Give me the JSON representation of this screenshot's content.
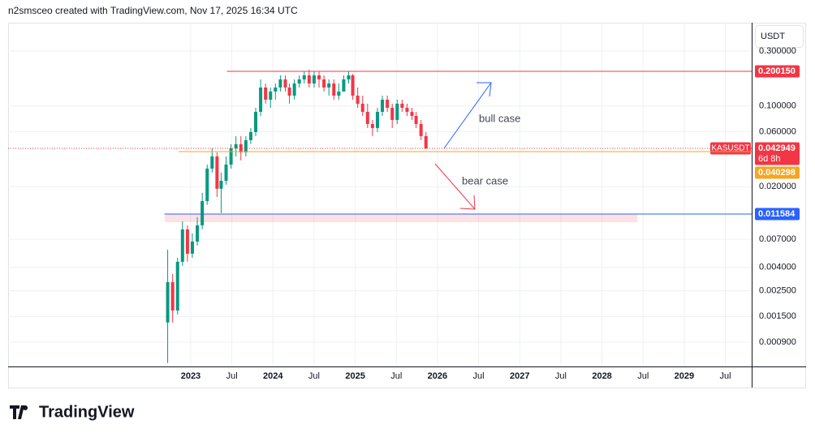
{
  "header": "n2smsceo created with TradingView.com, Nov 17, 2025 16:34 UTC",
  "brand": "TradingView",
  "chart_data": {
    "type": "candlestick",
    "symbol": "KASUSDT",
    "unit": "USDT",
    "log_scale": true,
    "grid": true,
    "up_color": "#089981",
    "down_color": "#f23645",
    "xlim": [
      2020.78,
      2029.82
    ],
    "ylim": [
      0.000553,
      0.528
    ],
    "xticks": [
      {
        "value": 2023,
        "label": "2023"
      },
      {
        "value": 2023.5,
        "label": "Jul"
      },
      {
        "value": 2024,
        "label": "2024"
      },
      {
        "value": 2024.5,
        "label": "Jul"
      },
      {
        "value": 2025,
        "label": "2025"
      },
      {
        "value": 2025.5,
        "label": "Jul"
      },
      {
        "value": 2026,
        "label": "2026"
      },
      {
        "value": 2026.5,
        "label": "Jul"
      },
      {
        "value": 2027,
        "label": "2027"
      },
      {
        "value": 2027.5,
        "label": "Jul"
      },
      {
        "value": 2028,
        "label": "2028"
      },
      {
        "value": 2028.5,
        "label": "Jul"
      },
      {
        "value": 2029,
        "label": "2029"
      },
      {
        "value": 2029.5,
        "label": "Jul"
      }
    ],
    "yticks": [
      {
        "value": 0.3,
        "label": "0.300000"
      },
      {
        "value": 0.1,
        "label": "0.100000"
      },
      {
        "value": 0.06,
        "label": "0.060000"
      },
      {
        "value": 0.02,
        "label": "0.020000"
      },
      {
        "value": 0.007,
        "label": "0.007000"
      },
      {
        "value": 0.004,
        "label": "0.004000"
      },
      {
        "value": 0.0025,
        "label": "0.002500"
      },
      {
        "value": 0.0015,
        "label": "0.001500"
      },
      {
        "value": 0.0009,
        "label": "0.000900"
      }
    ],
    "x": [
      2022.72,
      2022.78,
      2022.84,
      2022.9,
      2022.96,
      2023.02,
      2023.08,
      2023.14,
      2023.2,
      2023.26,
      2023.32,
      2023.37,
      2023.43,
      2023.49,
      2023.55,
      2023.61,
      2023.67,
      2023.73,
      2023.79,
      2023.85,
      2023.91,
      2023.97,
      2024.03,
      2024.09,
      2024.15,
      2024.2,
      2024.26,
      2024.32,
      2024.38,
      2024.44,
      2024.5,
      2024.56,
      2024.62,
      2024.68,
      2024.74,
      2024.8,
      2024.86,
      2024.92,
      2024.97,
      2025.03,
      2025.09,
      2025.15,
      2025.21,
      2025.27,
      2025.33,
      2025.39,
      2025.45,
      2025.51,
      2025.57,
      2025.63,
      2025.69,
      2025.74,
      2025.8,
      2025.86
    ],
    "open": [
      0.00133,
      0.00298,
      0.00169,
      0.00447,
      0.00853,
      0.00525,
      0.00669,
      0.00925,
      0.015,
      0.0287,
      0.0366,
      0.0192,
      0.0225,
      0.0311,
      0.043,
      0.0467,
      0.0397,
      0.0506,
      0.0595,
      0.0891,
      0.1448,
      0.1136,
      0.1336,
      0.1448,
      0.1703,
      0.1448,
      0.1232,
      0.157,
      0.1703,
      0.1846,
      0.157,
      0.1846,
      0.1703,
      0.1448,
      0.157,
      0.1232,
      0.1336,
      0.1703,
      0.1846,
      0.1232,
      0.1048,
      0.0891,
      0.0699,
      0.0645,
      0.0891,
      0.1136,
      0.0966,
      0.0758,
      0.1048,
      0.0966,
      0.0891,
      0.0822,
      0.0699,
      0.0549
    ],
    "high": [
      0.00569,
      0.0035,
      0.00484,
      0.01,
      0.00925,
      0.00787,
      0.0109,
      0.0177,
      0.0311,
      0.043,
      0.0397,
      0.0265,
      0.0366,
      0.0467,
      0.0549,
      0.0549,
      0.0549,
      0.0645,
      0.0966,
      0.1703,
      0.157,
      0.1448,
      0.157,
      0.1846,
      0.1846,
      0.157,
      0.1703,
      0.1846,
      0.2002,
      0.207,
      0.2002,
      0.2002,
      0.1846,
      0.1703,
      0.1703,
      0.157,
      0.1846,
      0.2002,
      0.19,
      0.1448,
      0.1232,
      0.1048,
      0.0758,
      0.0966,
      0.1232,
      0.1232,
      0.1048,
      0.1136,
      0.1136,
      0.1048,
      0.0966,
      0.0891,
      0.0758,
      0.0595
    ],
    "low": [
      0.000592,
      0.00133,
      0.00156,
      0.00412,
      0.00447,
      0.00484,
      0.00617,
      0.00853,
      0.0139,
      0.0265,
      0.0163,
      0.0118,
      0.0208,
      0.0287,
      0.0366,
      0.0338,
      0.0366,
      0.0467,
      0.0549,
      0.0822,
      0.1048,
      0.0966,
      0.1136,
      0.1336,
      0.1336,
      0.1048,
      0.1136,
      0.1448,
      0.157,
      0.1448,
      0.1448,
      0.1448,
      0.1336,
      0.1232,
      0.1136,
      0.1136,
      0.1336,
      0.157,
      0.1136,
      0.0966,
      0.0822,
      0.0645,
      0.0549,
      0.0595,
      0.0822,
      0.0891,
      0.0645,
      0.0699,
      0.0891,
      0.0822,
      0.0758,
      0.0645,
      0.0506,
      0.0425
    ],
    "close": [
      0.00298,
      0.00169,
      0.00447,
      0.00853,
      0.00525,
      0.00669,
      0.00925,
      0.015,
      0.0287,
      0.0366,
      0.0192,
      0.0225,
      0.0311,
      0.043,
      0.0467,
      0.0397,
      0.0506,
      0.0595,
      0.0891,
      0.1448,
      0.1136,
      0.1336,
      0.1448,
      0.1703,
      0.1448,
      0.1232,
      0.157,
      0.1703,
      0.1846,
      0.157,
      0.1846,
      0.1703,
      0.1448,
      0.157,
      0.1232,
      0.1336,
      0.1703,
      0.1846,
      0.1232,
      0.1048,
      0.0891,
      0.0699,
      0.0645,
      0.0891,
      0.1136,
      0.0966,
      0.0758,
      0.1048,
      0.0966,
      0.0891,
      0.0822,
      0.0699,
      0.0549,
      0.042949
    ],
    "levels": [
      {
        "value": 0.20015,
        "label": "0.200150",
        "color": "#f23645",
        "style": "solid",
        "x_start": 2023.44
      },
      {
        "value": 0.042949,
        "label": "0.042949",
        "color": "#f23645",
        "style": "dotted",
        "x_start": 2020.78,
        "name": "KASUSDT",
        "note": "6d 8h"
      },
      {
        "value": 0.040298,
        "label": "0.040298",
        "color": "#f5a623",
        "style": "solid",
        "x_start": 2022.85
      },
      {
        "value": 0.011584,
        "label": "0.011584",
        "color": "#2962ff",
        "style": "solid",
        "x_start": 2022.68
      }
    ],
    "annotations": [
      "bull case",
      "bear case"
    ]
  }
}
